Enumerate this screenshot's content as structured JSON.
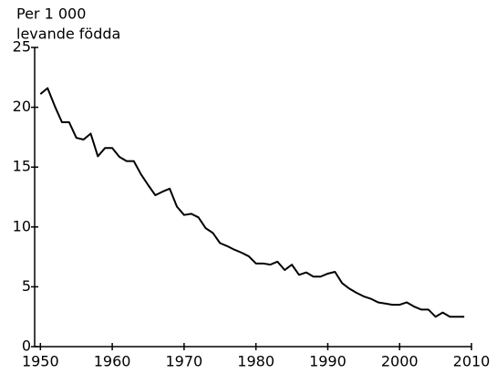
{
  "chart_data": {
    "type": "line",
    "ylabel": [
      "Per 1 000",
      "levande födda"
    ],
    "x": [
      1950,
      1951,
      1952,
      1953,
      1954,
      1955,
      1956,
      1957,
      1958,
      1959,
      1960,
      1961,
      1962,
      1963,
      1964,
      1965,
      1966,
      1967,
      1968,
      1969,
      1970,
      1971,
      1972,
      1973,
      1974,
      1975,
      1976,
      1977,
      1978,
      1979,
      1980,
      1981,
      1982,
      1983,
      1984,
      1985,
      1986,
      1987,
      1988,
      1989,
      1990,
      1991,
      1992,
      1993,
      1994,
      1995,
      1996,
      1997,
      1998,
      1999,
      2000,
      2001,
      2002,
      2003,
      2004,
      2005,
      2006,
      2007,
      2008,
      2009
    ],
    "values": [
      21.1,
      21.6,
      20.1,
      18.75,
      18.75,
      17.45,
      17.3,
      17.8,
      15.9,
      16.6,
      16.6,
      15.85,
      15.5,
      15.5,
      14.4,
      13.5,
      12.65,
      12.95,
      13.2,
      11.7,
      11.0,
      11.1,
      10.8,
      9.9,
      9.5,
      8.65,
      8.4,
      8.1,
      7.85,
      7.55,
      6.95,
      6.95,
      6.85,
      7.1,
      6.4,
      6.85,
      6.0,
      6.2,
      5.85,
      5.85,
      6.1,
      6.25,
      5.3,
      4.85,
      4.5,
      4.2,
      4.0,
      3.7,
      3.6,
      3.5,
      3.5,
      3.7,
      3.35,
      3.1,
      3.1,
      2.5,
      2.85,
      2.5,
      2.5,
      2.5
    ],
    "color": "#000000",
    "xlim": [
      1949.2,
      2010
    ],
    "xticks": [
      1950,
      1960,
      1970,
      1980,
      1990,
      2000,
      2010
    ],
    "ylim": [
      0,
      25
    ],
    "yticks": [
      0,
      5,
      10,
      15,
      20,
      25
    ]
  }
}
